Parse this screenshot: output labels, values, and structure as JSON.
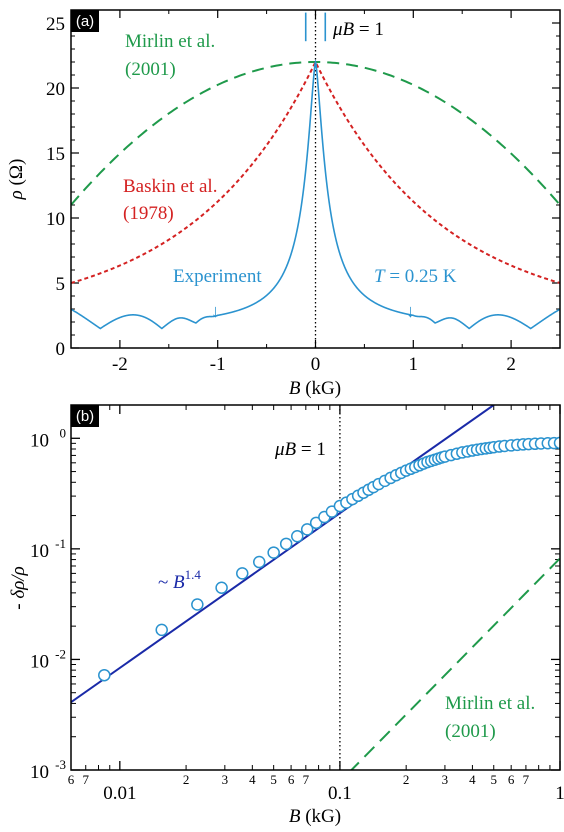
{
  "colors": {
    "blue": "#2b93cf",
    "red": "#d42222",
    "green": "#1f9a4b",
    "navy": "#1a2aa8",
    "black": "#000000"
  },
  "chart_data": [
    {
      "type": "line",
      "panel_label": "(a)",
      "xlabel_var": "B",
      "xlabel_unit": " (kG)",
      "ylabel_var": "ρ",
      "ylabel_unit": " (Ω)",
      "xlim": [
        -2.5,
        2.5
      ],
      "ylim": [
        0,
        26
      ],
      "xticks": [
        -2,
        -1,
        0,
        1,
        2
      ],
      "xtick_labels": [
        "-2",
        "-1",
        "0",
        "1",
        "2"
      ],
      "yticks": [
        0,
        5,
        10,
        15,
        20,
        25
      ],
      "ytick_labels": [
        "0",
        "5",
        "10",
        "15",
        "20",
        "25"
      ],
      "vline_x": 0,
      "vline_label_var": "μB",
      "vline_label_rest": " = 1",
      "series": [
        {
          "name": "Mirlin et al. (2001)",
          "name_line1": "Mirlin et al.",
          "name_line2": "(2001)",
          "style": "long-dash",
          "color": "#1f9a4b",
          "x": [
            -2.5,
            -2.0,
            -1.5,
            -1.0,
            -0.5,
            0.0,
            0.5,
            1.0,
            1.5,
            2.0,
            2.5
          ],
          "y": [
            11.0,
            14.5,
            17.5,
            19.8,
            21.4,
            22.0,
            21.4,
            19.8,
            17.5,
            14.5,
            11.0
          ]
        },
        {
          "name": "Baskin et al. (1978)",
          "name_line1": "Baskin et al.",
          "name_line2": "(1978)",
          "style": "short-dash",
          "color": "#d42222",
          "x": [
            -2.5,
            -2.0,
            -1.5,
            -1.0,
            -0.5,
            -0.25,
            0.0,
            0.25,
            0.5,
            1.0,
            1.5,
            2.0,
            2.5
          ],
          "y": [
            5.0,
            6.3,
            8.2,
            11.0,
            15.3,
            18.5,
            22.0,
            18.5,
            15.3,
            11.0,
            8.2,
            6.3,
            5.0
          ]
        },
        {
          "name": "Experiment",
          "style": "solid",
          "color": "#2b93cf",
          "x": [
            -2.5,
            -2.2,
            -1.9,
            -1.6,
            -1.3,
            -1.0,
            -0.7,
            -0.5,
            -0.3,
            -0.2,
            -0.1,
            0.0,
            0.1,
            0.2,
            0.3,
            0.5,
            0.7,
            1.0,
            1.3,
            1.6,
            1.9,
            2.2,
            2.5
          ],
          "y": [
            3.2,
            2.7,
            2.3,
            2.0,
            1.8,
            1.7,
            2.3,
            3.5,
            6.5,
            10.0,
            16.0,
            22.0,
            16.0,
            10.0,
            6.5,
            3.5,
            2.3,
            1.7,
            1.8,
            2.0,
            2.3,
            2.7,
            3.2
          ],
          "oscillations": "present at |B| > 1 kG, dipping to about 1.5 Ω"
        }
      ],
      "annotations": {
        "experiment_label": "Experiment",
        "temperature_var": "T",
        "temperature_rest": " = 0.25 K",
        "arrow_glyph": "↓"
      }
    },
    {
      "type": "scatter",
      "panel_label": "(b)",
      "xlabel_var": "B",
      "xlabel_unit": " (kG)",
      "ylabel": "- δρ/ρ",
      "xscale": "log",
      "yscale": "log",
      "xlim": [
        0.006,
        1
      ],
      "ylim": [
        0.001,
        2
      ],
      "xtick_major_labels": [
        "0.01",
        "0.1",
        "1"
      ],
      "xtick_minor_labels": [
        "6",
        "7",
        "2",
        "3",
        "4",
        "5",
        "6",
        "7",
        "2",
        "3",
        "4",
        "5",
        "6",
        "7"
      ],
      "ytick_labels": [
        {
          "base": "10",
          "exp": "-3"
        },
        {
          "base": "10",
          "exp": "-2"
        },
        {
          "base": "10",
          "exp": "-1"
        },
        {
          "base": "10",
          "exp": "0"
        }
      ],
      "vline_x": 0.1,
      "vline_label_var": "μB",
      "vline_label_rest": " = 1",
      "experiment_points": {
        "x": [
          0.0085,
          0.0155,
          0.0225,
          0.029,
          0.036,
          0.043,
          0.05,
          0.057,
          0.064,
          0.071,
          0.078,
          0.085,
          0.092,
          0.1,
          0.107,
          0.114,
          0.121,
          0.128,
          0.135,
          0.142,
          0.15,
          0.16,
          0.17,
          0.18,
          0.19,
          0.2,
          0.21,
          0.22,
          0.23,
          0.24,
          0.25,
          0.26,
          0.27,
          0.28,
          0.29,
          0.3,
          0.32,
          0.34,
          0.36,
          0.38,
          0.4,
          0.42,
          0.44,
          0.46,
          0.48,
          0.5,
          0.53,
          0.56,
          0.6,
          0.64,
          0.68,
          0.72,
          0.77,
          0.82,
          0.88,
          0.94,
          1.0
        ],
        "y": [
          0.0072,
          0.0185,
          0.0314,
          0.0445,
          0.06,
          0.076,
          0.0925,
          0.111,
          0.13,
          0.15,
          0.172,
          0.194,
          0.217,
          0.244,
          0.262,
          0.282,
          0.302,
          0.322,
          0.342,
          0.362,
          0.385,
          0.412,
          0.438,
          0.463,
          0.487,
          0.51,
          0.53,
          0.55,
          0.57,
          0.59,
          0.61,
          0.625,
          0.64,
          0.655,
          0.67,
          0.683,
          0.705,
          0.725,
          0.745,
          0.76,
          0.775,
          0.788,
          0.8,
          0.81,
          0.82,
          0.83,
          0.842,
          0.852,
          0.862,
          0.872,
          0.88,
          0.886,
          0.892,
          0.897,
          0.902,
          0.905,
          0.908
        ]
      },
      "fit_line": {
        "label_prefix": "~ ",
        "label_var": "B",
        "label_exp": "1.4",
        "color": "#1a2aa8",
        "exponent": 1.4,
        "x": [
          0.006,
          0.5
        ],
        "y": [
          0.0041,
          2.0
        ]
      },
      "mirlin_line": {
        "name_line1": "Mirlin et al.",
        "name_line2": "(2001)",
        "color": "#1f9a4b",
        "style": "long-dash",
        "x": [
          0.11,
          1.0
        ],
        "y": [
          0.00095,
          0.082
        ]
      }
    }
  ]
}
